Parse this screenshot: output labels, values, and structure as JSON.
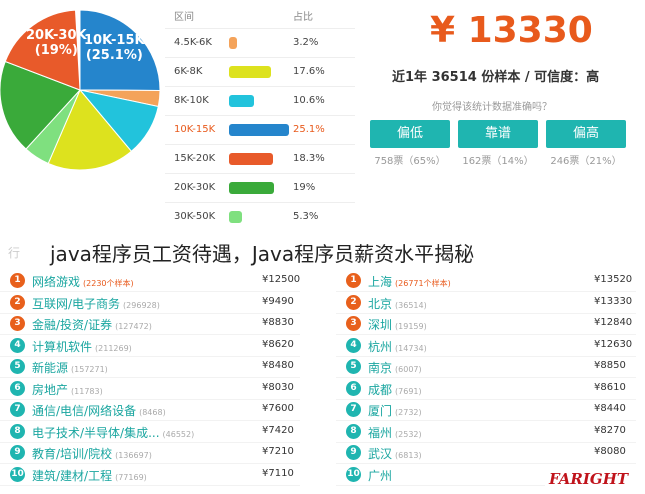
{
  "pie": {
    "label_a_range": "20K-30K",
    "label_a_pct": "(19%)",
    "label_b_range": "10K-15K",
    "label_b_pct": "(25.1%)",
    "slices": [
      {
        "range": "10K-15K",
        "share": 25.1,
        "color": "#2585cc"
      },
      {
        "range": "4.5K-6K",
        "share": 3.2,
        "color": "#f4a35a"
      },
      {
        "range": "8K-10K",
        "share": 10.6,
        "color": "#22c3dc"
      },
      {
        "range": "6K-8K",
        "share": 17.6,
        "color": "#dde21e"
      },
      {
        "range": "30K-50K",
        "share": 5.3,
        "color": "#7fe07f"
      },
      {
        "range": "20K-30K",
        "share": 19,
        "color": "#3aaa3a"
      },
      {
        "range": "15K-20K",
        "share": 18.3,
        "color": "#e85a2a"
      }
    ]
  },
  "range_table": {
    "header_range": "区间",
    "header_pct": "占比",
    "rows": [
      {
        "range": "4.5K-6K",
        "pct": "3.2%",
        "value": 3.2,
        "color": "#f4a35a"
      },
      {
        "range": "6K-8K",
        "pct": "17.6%",
        "value": 17.6,
        "color": "#dde21e"
      },
      {
        "range": "8K-10K",
        "pct": "10.6%",
        "value": 10.6,
        "color": "#22c3dc"
      },
      {
        "range": "10K-15K",
        "pct": "25.1%",
        "value": 25.1,
        "color": "#2585cc",
        "highlight": true
      },
      {
        "range": "15K-20K",
        "pct": "18.3%",
        "value": 18.3,
        "color": "#e85a2a"
      },
      {
        "range": "20K-30K",
        "pct": "19%",
        "value": 19,
        "color": "#3aaa3a"
      },
      {
        "range": "30K-50K",
        "pct": "5.3%",
        "value": 5.3,
        "color": "#7fe07f"
      }
    ]
  },
  "summary": {
    "salary": "¥ 13330",
    "sample_line": "近1年 36514 份样本 / 可信度：高",
    "question": "你觉得该统计数据准确吗？",
    "buttons": [
      {
        "label": "偏低",
        "count": "758票（65%）"
      },
      {
        "label": "靠谱",
        "count": "162票（14%）"
      },
      {
        "label": "偏高",
        "count": "246票（21%）"
      }
    ]
  },
  "title": "java程序员工资待遇，Java程序员薪资水平揭秘",
  "industry_header": "行",
  "industries": [
    {
      "rank": "1",
      "name": "网络游戏",
      "count": "(2230个样本)",
      "salary": "¥12500"
    },
    {
      "rank": "2",
      "name": "互联网/电子商务",
      "count": "(296928)",
      "salary": "¥9490"
    },
    {
      "rank": "3",
      "name": "金融/投资/证券",
      "count": "(127472)",
      "salary": "¥8830"
    },
    {
      "rank": "4",
      "name": "计算机软件",
      "count": "(211269)",
      "salary": "¥8620"
    },
    {
      "rank": "5",
      "name": "新能源",
      "count": "(157271)",
      "salary": "¥8480"
    },
    {
      "rank": "6",
      "name": "房地产",
      "count": "(11783)",
      "salary": "¥8030"
    },
    {
      "rank": "7",
      "name": "通信/电信/网络设备",
      "count": "(8468)",
      "salary": "¥7600"
    },
    {
      "rank": "8",
      "name": "电子技术/半导体/集成...",
      "count": "(46552)",
      "salary": "¥7420"
    },
    {
      "rank": "9",
      "name": "教育/培训/院校",
      "count": "(136697)",
      "salary": "¥7210"
    },
    {
      "rank": "10",
      "name": "建筑/建材/工程",
      "count": "(77169)",
      "salary": "¥7110"
    }
  ],
  "cities": [
    {
      "rank": "1",
      "name": "上海",
      "count": "(26771个样本)",
      "salary": "¥13520"
    },
    {
      "rank": "2",
      "name": "北京",
      "count": "(36514)",
      "salary": "¥13330"
    },
    {
      "rank": "3",
      "name": "深圳",
      "count": "(19159)",
      "salary": "¥12840"
    },
    {
      "rank": "4",
      "name": "杭州",
      "count": "(14734)",
      "salary": "¥12630"
    },
    {
      "rank": "5",
      "name": "南京",
      "count": "(6007)",
      "salary": "¥8850"
    },
    {
      "rank": "6",
      "name": "成都",
      "count": "(7691)",
      "salary": "¥8610"
    },
    {
      "rank": "7",
      "name": "厦门",
      "count": "(2732)",
      "salary": "¥8440"
    },
    {
      "rank": "8",
      "name": "福州",
      "count": "(2532)",
      "salary": "¥8270"
    },
    {
      "rank": "9",
      "name": "武汉",
      "count": "(6813)",
      "salary": "¥8080"
    },
    {
      "rank": "10",
      "name": "广州",
      "count": "",
      "salary": ""
    }
  ],
  "rank_colors": [
    "#e8601c",
    "#e8601c",
    "#e8601c",
    "#1fb5b0",
    "#1fb5b0",
    "#1fb5b0",
    "#1fb5b0",
    "#1fb5b0",
    "#1fb5b0",
    "#1fb5b0"
  ],
  "logo_text": "FARIGHT"
}
